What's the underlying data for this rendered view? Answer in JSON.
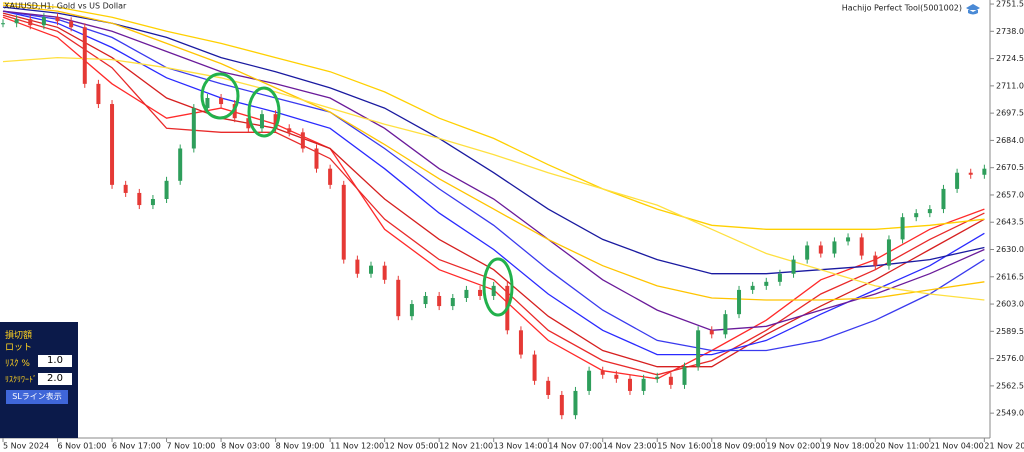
{
  "chart_data": {
    "type": "candlestick",
    "title": "XAUUSD,H1: Gold vs US Dollar",
    "annotation": "Hachijo Perfect Tool(5001002)",
    "categories": [
      "5 Nov 2024",
      null,
      null,
      null,
      "6 Nov 01:00",
      null,
      null,
      null,
      "6 Nov 17:00",
      null,
      null,
      null,
      "7 Nov 10:00",
      null,
      null,
      null,
      "8 Nov 03:00",
      null,
      null,
      null,
      "8 Nov 19:00",
      null,
      null,
      null,
      "11 Nov 12:00",
      null,
      null,
      null,
      "12 Nov 05:00",
      null,
      null,
      null,
      "12 Nov 21:00",
      null,
      null,
      null,
      "13 Nov 14:00",
      null,
      null,
      null,
      "14 Nov 07:00",
      null,
      null,
      null,
      "14 Nov 23:00",
      null,
      null,
      null,
      "15 Nov 16:00",
      null,
      null,
      null,
      "18 Nov 09:00",
      null,
      null,
      null,
      "19 Nov 02:00",
      null,
      null,
      null,
      "19 Nov 18:00",
      null,
      null,
      null,
      "20 Nov 11:00",
      null,
      null,
      null,
      "21 Nov 04:00",
      null,
      null,
      null,
      "21 Nov 20:00"
    ],
    "values": [
      2742,
      2744,
      2741,
      2745,
      2743,
      2740,
      2712,
      2702,
      2662,
      2658,
      2652,
      2655,
      2664,
      2680,
      2700,
      2705,
      2702,
      2695,
      2690,
      2697,
      2690,
      2688,
      2680,
      2670,
      2662,
      2625,
      2618,
      2622,
      2615,
      2597,
      2603,
      2607,
      2602,
      2606,
      2610,
      2607,
      2612,
      2590,
      2578,
      2565,
      2558,
      2548,
      2560,
      2570,
      2568,
      2566,
      2560,
      2566,
      2567,
      2563,
      2572,
      2590,
      2588,
      2598,
      2610,
      2612,
      2614,
      2618,
      2625,
      2632,
      2628,
      2634,
      2636,
      2627,
      2622,
      2635,
      2646,
      2648,
      2650,
      2660,
      2668,
      2667,
      2670
    ],
    "up_color": "#2e9e5b",
    "down_color": "#e53935",
    "overlays": [
      {
        "color": "#ff2a2a",
        "x": [
          0,
          4,
          8,
          12,
          16,
          20,
          24,
          28,
          32,
          36,
          40,
          44,
          48,
          52,
          56,
          60,
          64,
          68,
          72
        ],
        "values": [
          2745,
          2735,
          2712,
          2695,
          2700,
          2692,
          2680,
          2640,
          2620,
          2610,
          2585,
          2570,
          2566,
          2580,
          2595,
          2615,
          2625,
          2640,
          2650
        ]
      },
      {
        "color": "#e82a2a",
        "x": [
          0,
          4,
          8,
          12,
          16,
          20,
          24,
          28,
          32,
          36,
          40,
          44,
          48,
          52,
          56,
          60,
          64,
          68,
          72
        ],
        "values": [
          2746,
          2738,
          2720,
          2690,
          2688,
          2688,
          2675,
          2645,
          2625,
          2615,
          2590,
          2575,
          2568,
          2575,
          2590,
          2608,
          2620,
          2635,
          2648
        ]
      },
      {
        "color": "#d62020",
        "x": [
          0,
          4,
          8,
          12,
          16,
          20,
          24,
          28,
          32,
          36,
          40,
          44,
          48,
          52,
          56,
          60,
          64,
          68,
          72
        ],
        "values": [
          2747,
          2740,
          2725,
          2705,
          2695,
          2690,
          2680,
          2655,
          2635,
          2620,
          2597,
          2580,
          2572,
          2572,
          2588,
          2602,
          2615,
          2630,
          2645
        ]
      },
      {
        "color": "#2a2aff",
        "x": [
          0,
          4,
          8,
          12,
          16,
          20,
          24,
          28,
          32,
          36,
          40,
          44,
          48,
          52,
          56,
          60,
          64,
          68,
          72
        ],
        "values": [
          2748,
          2742,
          2730,
          2715,
          2705,
          2698,
          2690,
          2670,
          2648,
          2630,
          2608,
          2590,
          2578,
          2578,
          2585,
          2598,
          2610,
          2622,
          2638
        ]
      },
      {
        "color": "#3a3aee",
        "x": [
          0,
          4,
          8,
          12,
          16,
          20,
          24,
          28,
          32,
          36,
          40,
          44,
          48,
          52,
          56,
          60,
          64,
          68,
          72
        ],
        "values": [
          2748,
          2744,
          2735,
          2720,
          2712,
          2705,
          2698,
          2680,
          2660,
          2642,
          2620,
          2600,
          2585,
          2580,
          2580,
          2585,
          2595,
          2608,
          2625
        ]
      },
      {
        "color": "#6a1b9a",
        "x": [
          0,
          4,
          8,
          12,
          16,
          20,
          24,
          28,
          32,
          36,
          40,
          44,
          48,
          52,
          56,
          60,
          64,
          68,
          72
        ],
        "values": [
          2748,
          2745,
          2738,
          2728,
          2718,
          2712,
          2705,
          2690,
          2670,
          2655,
          2635,
          2615,
          2600,
          2590,
          2592,
          2600,
          2608,
          2618,
          2630
        ]
      },
      {
        "color": "#1a1aa0",
        "x": [
          0,
          4,
          8,
          12,
          16,
          20,
          24,
          28,
          32,
          36,
          40,
          44,
          48,
          52,
          56,
          60,
          64,
          68,
          72
        ],
        "values": [
          2750,
          2747,
          2742,
          2735,
          2725,
          2718,
          2710,
          2700,
          2685,
          2668,
          2650,
          2635,
          2625,
          2618,
          2618,
          2620,
          2622,
          2625,
          2631
        ]
      },
      {
        "color": "#ffd000",
        "x": [
          0,
          4,
          8,
          12,
          16,
          20,
          24,
          28,
          32,
          36,
          40,
          44,
          48,
          52,
          56,
          60,
          64,
          68,
          72
        ],
        "values": [
          2752,
          2750,
          2745,
          2738,
          2732,
          2725,
          2718,
          2708,
          2695,
          2685,
          2672,
          2660,
          2650,
          2642,
          2640,
          2640,
          2640,
          2642,
          2645
        ]
      },
      {
        "color": "#ffc400",
        "x": [
          0,
          4,
          8,
          12,
          16,
          20,
          24,
          28,
          32,
          36,
          40,
          44,
          48,
          52,
          56,
          60,
          64,
          68,
          72
        ],
        "values": [
          2751,
          2748,
          2742,
          2732,
          2722,
          2710,
          2698,
          2682,
          2665,
          2650,
          2635,
          2622,
          2612,
          2606,
          2605,
          2605,
          2606,
          2610,
          2614
        ]
      },
      {
        "color": "#ffe040",
        "x": [
          0,
          4,
          8,
          12,
          16,
          20,
          24,
          28,
          32,
          36,
          40,
          44,
          48,
          52,
          56,
          60,
          64,
          68,
          72
        ],
        "values": [
          2723,
          2725,
          2724,
          2720,
          2715,
          2708,
          2700,
          2692,
          2685,
          2677,
          2668,
          2660,
          2652,
          2640,
          2628,
          2620,
          2612,
          2608,
          2605
        ]
      }
    ],
    "ylim": [
      2536.7,
      2753.5
    ],
    "yticks": [
      {
        "value": 2751.5,
        "label": "2751.50"
      },
      {
        "value": 2738,
        "label": "2738.00"
      },
      {
        "value": 2724.5,
        "label": "2724.50"
      },
      {
        "value": 2711,
        "label": "2711.00"
      },
      {
        "value": 2697.5,
        "label": "2697.50"
      },
      {
        "value": 2684,
        "label": "2684.00"
      },
      {
        "value": 2670.5,
        "label": "2670.50"
      },
      {
        "value": 2657,
        "label": "2657.00"
      },
      {
        "value": 2643.5,
        "label": "2643.50"
      },
      {
        "value": 2630,
        "label": "2630.00"
      },
      {
        "value": 2616.5,
        "label": "2616.50"
      },
      {
        "value": 2603,
        "label": "2603.00"
      },
      {
        "value": 2589.5,
        "label": "2589.50"
      },
      {
        "value": 2576,
        "label": "2576.00"
      },
      {
        "value": 2562.5,
        "label": "2562.50"
      },
      {
        "value": 2549,
        "label": "2549.00"
      }
    ]
  },
  "panel": {
    "loss_amount": "損切額",
    "lot": "ロット",
    "risk_label": "ﾘｽｸ %",
    "risk_value": "1.0",
    "reward_label": "ﾘｽｸﾘﾜｰﾄﾞ",
    "reward_value": "2.0",
    "button": "SLライン表示"
  }
}
